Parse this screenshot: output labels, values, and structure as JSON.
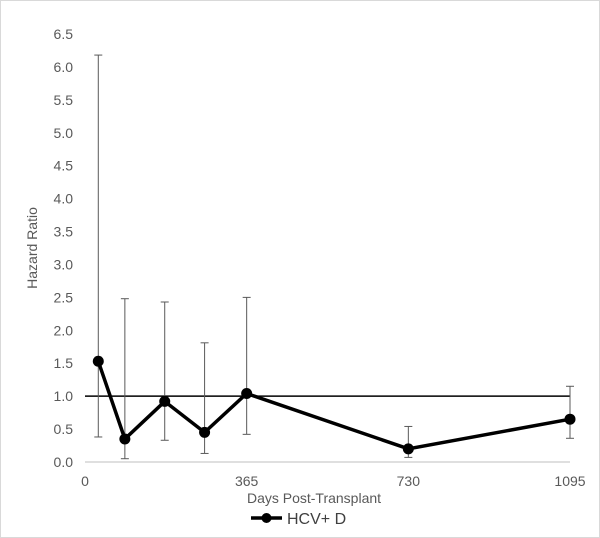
{
  "chart_data": {
    "type": "line",
    "title": "",
    "xlabel": "Days Post-Transplant",
    "ylabel": "Hazard Ratio",
    "xlim": [
      0,
      1095
    ],
    "ylim": [
      0,
      6.5
    ],
    "x_ticks": [
      0,
      365,
      730,
      1095
    ],
    "y_ticks": [
      0.0,
      0.5,
      1.0,
      1.5,
      2.0,
      2.5,
      3.0,
      3.5,
      4.0,
      4.5,
      5.0,
      5.5,
      6.0,
      6.5
    ],
    "y_tick_labels": [
      "0.0",
      "0.5",
      "1.0",
      "1.5",
      "2.0",
      "2.5",
      "3.0",
      "3.5",
      "4.0",
      "4.5",
      "5.0",
      "5.5",
      "6.0",
      "6.5"
    ],
    "reference_line": {
      "y": 1.0,
      "color": "#000000"
    },
    "grid": false,
    "legend": {
      "position": "bottom"
    },
    "series": [
      {
        "name": "HCV+ D",
        "color": "#000000",
        "points": [
          {
            "x": 30,
            "y": 1.53,
            "lower": 0.38,
            "upper": 6.18
          },
          {
            "x": 90,
            "y": 0.35,
            "lower": 0.05,
            "upper": 2.48
          },
          {
            "x": 180,
            "y": 0.92,
            "lower": 0.33,
            "upper": 2.43
          },
          {
            "x": 270,
            "y": 0.45,
            "lower": 0.13,
            "upper": 1.81
          },
          {
            "x": 365,
            "y": 1.04,
            "lower": 0.42,
            "upper": 2.5
          },
          {
            "x": 730,
            "y": 0.2,
            "lower": 0.07,
            "upper": 0.54
          },
          {
            "x": 1095,
            "y": 0.65,
            "lower": 0.36,
            "upper": 1.15
          }
        ]
      }
    ]
  }
}
